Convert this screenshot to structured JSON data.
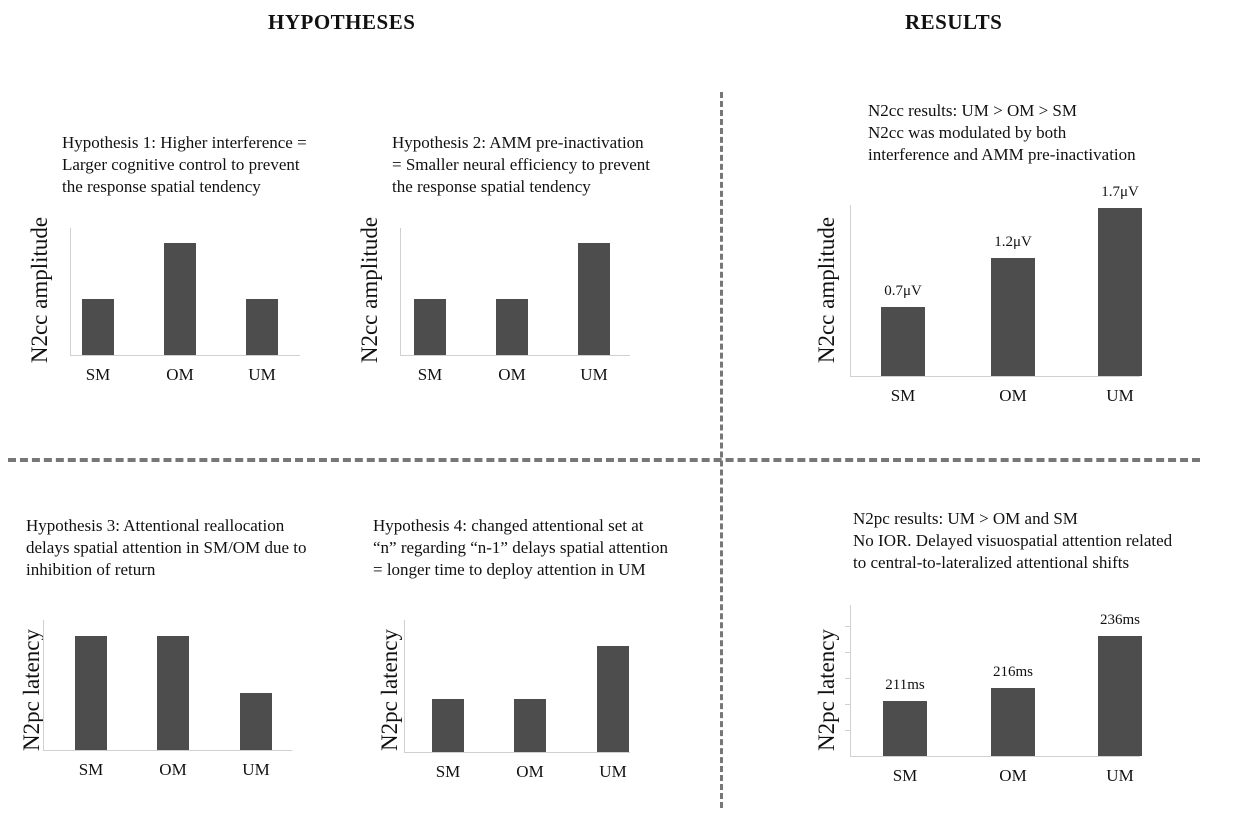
{
  "headings": {
    "hypotheses": "HYPOTHESES",
    "results": "RESULTS"
  },
  "chart_data": [
    {
      "type": "bar",
      "title": "Hypothesis 1: Higher interference =\nLarger cognitive control to prevent\nthe response spatial tendency",
      "ylabel": "N2cc amplitude",
      "categories": [
        "SM",
        "OM",
        "UM"
      ],
      "values": [
        1,
        2,
        1
      ],
      "ylim": [
        0,
        2.2
      ],
      "value_labels": []
    },
    {
      "type": "bar",
      "title": "Hypothesis 2: AMM pre-inactivation\n= Smaller neural efficiency to prevent\nthe response spatial tendency",
      "ylabel": "N2cc amplitude",
      "categories": [
        "SM",
        "OM",
        "UM"
      ],
      "values": [
        1,
        1,
        2
      ],
      "ylim": [
        0,
        2.2
      ],
      "value_labels": []
    },
    {
      "type": "bar",
      "title": "N2cc results: UM > OM > SM\nN2cc was modulated by both\ninterference and  AMM pre-inactivation",
      "ylabel": "N2cc amplitude",
      "categories": [
        "SM",
        "OM",
        "UM"
      ],
      "values": [
        0.7,
        1.2,
        1.7
      ],
      "ylim": [
        0,
        1.75
      ],
      "value_labels": [
        "0.7μV",
        "1.2μV",
        "1.7μV"
      ]
    },
    {
      "type": "bar",
      "title": "Hypothesis 3: Attentional reallocation\ndelays spatial attention in SM/OM due to\ninhibition of return",
      "ylabel": "N2pc latency",
      "categories": [
        "SM",
        "OM",
        "UM"
      ],
      "values": [
        2,
        2,
        1
      ],
      "ylim": [
        0,
        2.1
      ],
      "value_labels": []
    },
    {
      "type": "bar",
      "title": "Hypothesis 4: changed attentional set at\n“n” regarding “n-1” delays spatial attention\n= longer time to deploy attention in UM",
      "ylabel": "N2pc latency",
      "categories": [
        "SM",
        "OM",
        "UM"
      ],
      "values": [
        1,
        1,
        2
      ],
      "ylim": [
        0,
        2.2
      ],
      "value_labels": []
    },
    {
      "type": "bar",
      "title": "N2pc results: UM > OM and SM\nNo IOR. Delayed visuospatial attention related\nto central-to-lateralized attentional shifts",
      "ylabel": "N2pc latency",
      "categories": [
        "SM",
        "OM",
        "UM"
      ],
      "values": [
        211,
        216,
        236
      ],
      "ylim": [
        190,
        240
      ],
      "value_labels": [
        "211ms",
        "216ms",
        "236ms"
      ]
    }
  ]
}
